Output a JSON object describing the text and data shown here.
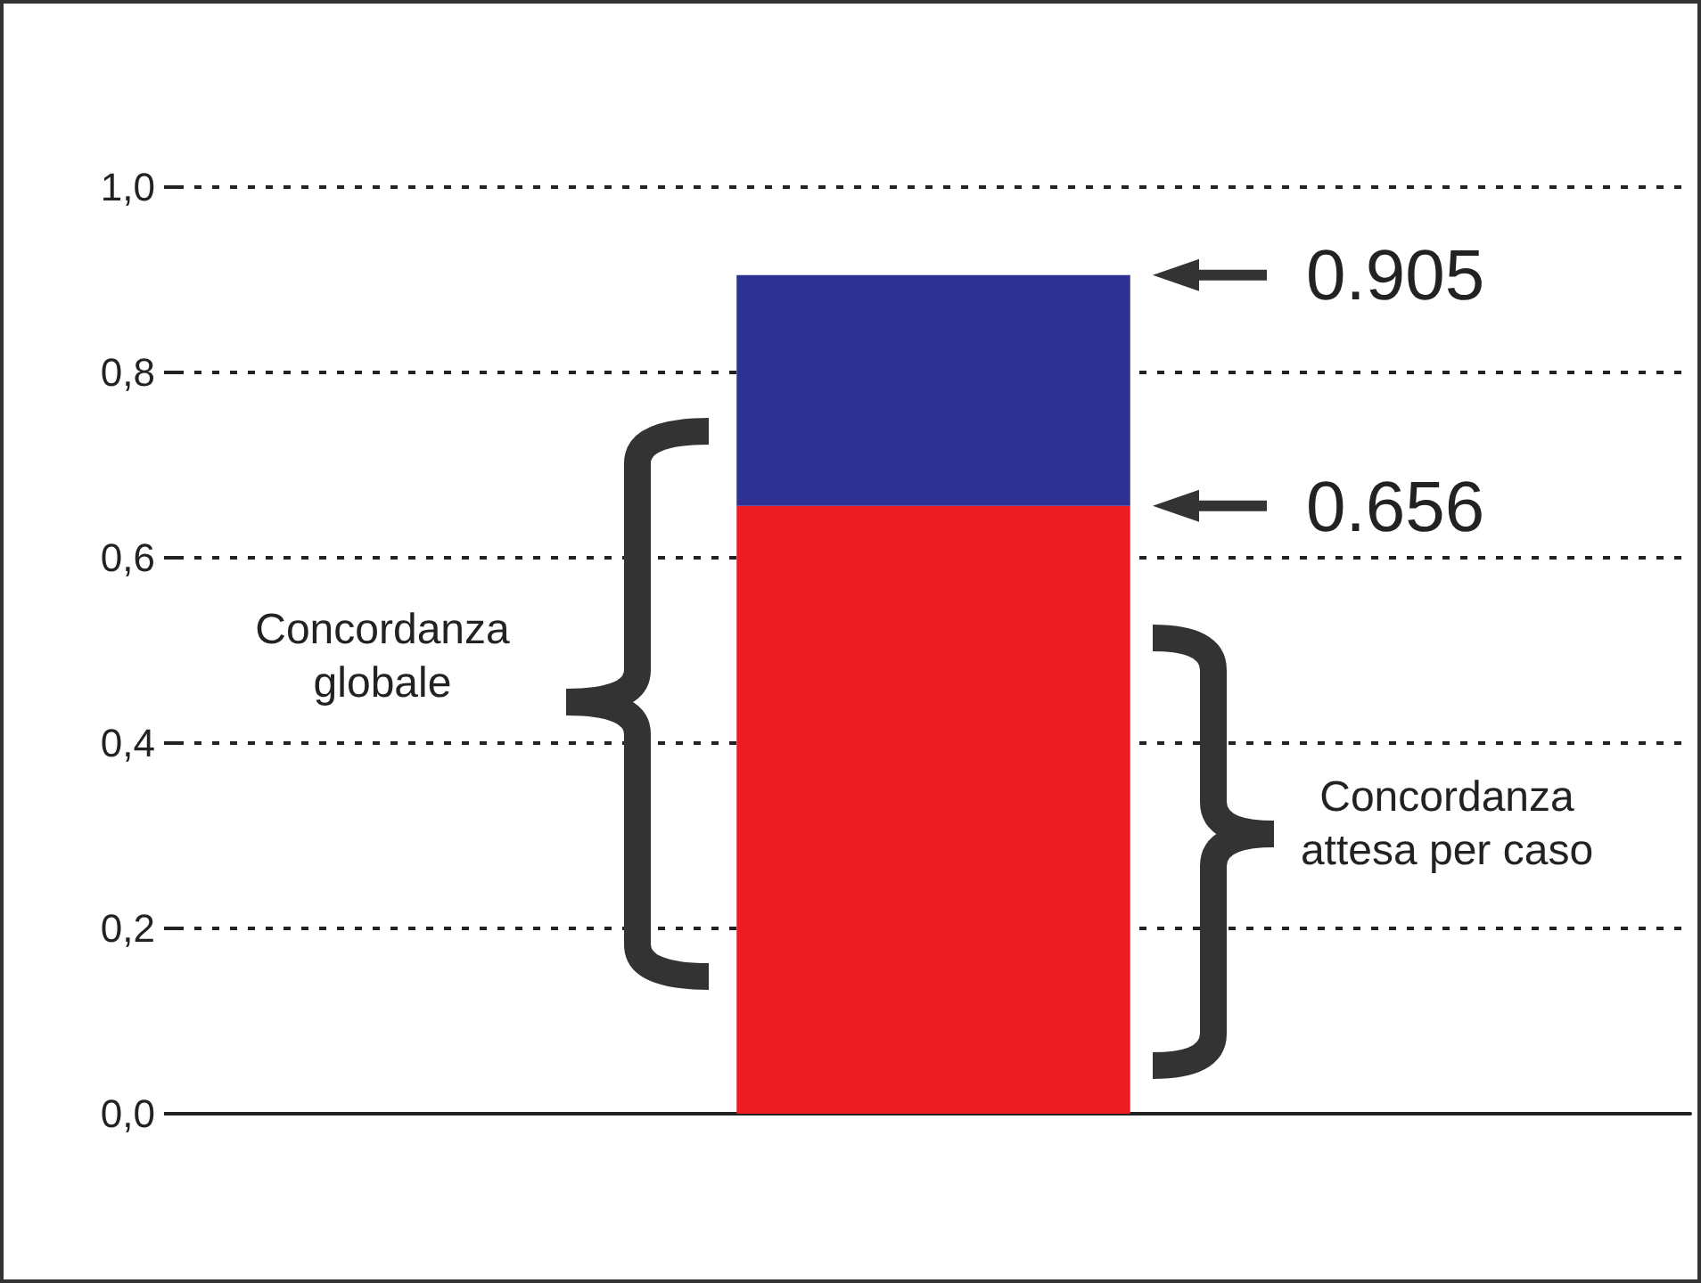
{
  "chart_data": {
    "type": "bar",
    "categories": [
      null
    ],
    "stacked": true,
    "series": [
      {
        "color": "#ed1c24",
        "values": [
          0.656
        ]
      },
      {
        "color": "#2e3192",
        "values": [
          0.249
        ]
      }
    ],
    "ylim": [
      0,
      1
    ],
    "yticks": [
      {
        "value": 0,
        "label": "0,0"
      },
      {
        "value": 0.2,
        "label": "0,2"
      },
      {
        "value": 0.4,
        "label": "0,4"
      },
      {
        "value": 0.6,
        "label": "0,6"
      },
      {
        "value": 0.8,
        "label": "0,8"
      },
      {
        "value": 1,
        "label": "1,0"
      }
    ],
    "grid": "y",
    "annotations": [
      "Concordanza globale",
      "Concordanza attesa per caso",
      "0.905",
      "0.656"
    ]
  }
}
